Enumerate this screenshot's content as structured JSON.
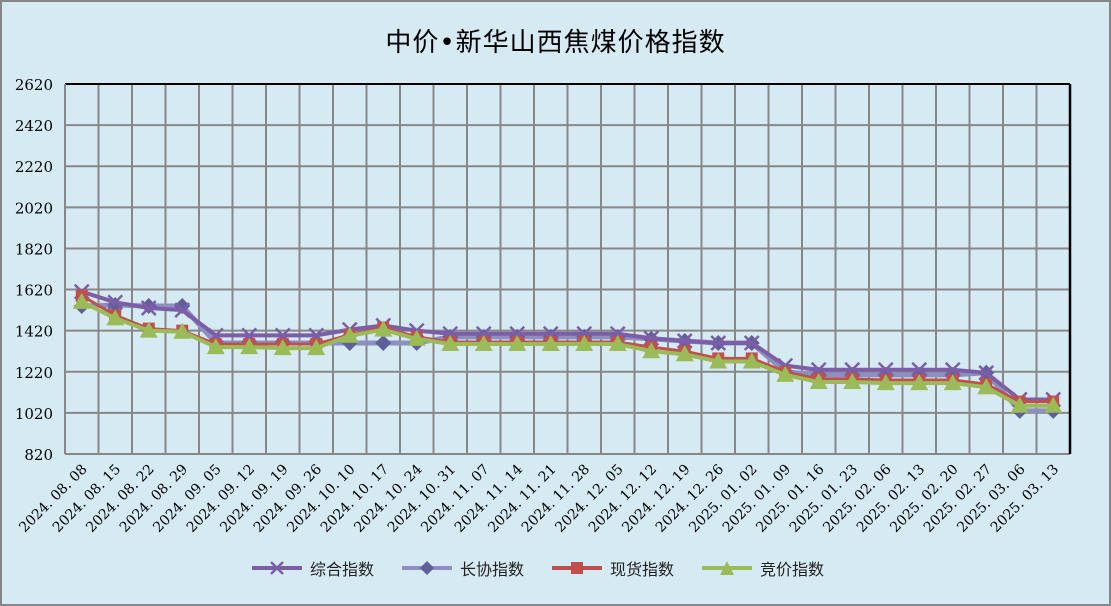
{
  "chart_data": {
    "type": "line",
    "title": "中价•新华山西焦煤价格指数",
    "xlabel": "",
    "ylabel": "",
    "ylim": [
      820,
      2620
    ],
    "yticks": [
      820,
      1020,
      1220,
      1420,
      1620,
      1820,
      2020,
      2220,
      2420,
      2620
    ],
    "grid": true,
    "legend_position": "bottom",
    "categories": [
      "2024. 08. 08",
      "2024. 08. 15",
      "2024. 08. 22",
      "2024. 08. 29",
      "2024. 09. 05",
      "2024. 09. 12",
      "2024. 09. 19",
      "2024. 09. 26",
      "2024. 10. 10",
      "2024. 10. 17",
      "2024. 10. 24",
      "2024. 10. 31",
      "2024. 11. 07",
      "2024. 11. 14",
      "2024. 11. 21",
      "2024. 11. 28",
      "2024. 12. 05",
      "2024. 12. 12",
      "2024. 12. 19",
      "2024. 12. 26",
      "2025. 01. 02",
      "2025. 01. 09",
      "2025. 01. 16",
      "2025. 01. 23",
      "2025. 02. 06",
      "2025. 02. 13",
      "2025. 02. 20",
      "2025. 02. 27",
      "2025. 03. 06",
      "2025. 03. 13"
    ],
    "series": [
      {
        "name": "综合指数",
        "color": "#7b5ea7",
        "marker": "x",
        "values": [
          1610,
          1558,
          1530,
          1520,
          1397,
          1397,
          1397,
          1397,
          1425,
          1445,
          1420,
          1405,
          1405,
          1405,
          1405,
          1405,
          1405,
          1383,
          1370,
          1360,
          1360,
          1250,
          1230,
          1230,
          1230,
          1230,
          1230,
          1215,
          1085,
          1085
        ]
      },
      {
        "name": "长协指数",
        "color": "#8c8fc0",
        "marker": "diamond",
        "values": [
          1540,
          1545,
          1540,
          1540,
          1360,
          1360,
          1360,
          1360,
          1360,
          1360,
          1360,
          1390,
          1390,
          1390,
          1390,
          1390,
          1390,
          1380,
          1370,
          1360,
          1360,
          1220,
          1205,
          1205,
          1205,
          1205,
          1205,
          1215,
          1030,
          1030
        ]
      },
      {
        "name": "现货指数",
        "color": "#c0504d",
        "marker": "square",
        "values": [
          1590,
          1495,
          1430,
          1420,
          1355,
          1355,
          1355,
          1355,
          1400,
          1435,
          1390,
          1365,
          1365,
          1365,
          1365,
          1365,
          1365,
          1340,
          1320,
          1285,
          1285,
          1220,
          1185,
          1185,
          1180,
          1180,
          1180,
          1160,
          1075,
          1075
        ]
      },
      {
        "name": "竞价指数",
        "color": "#9bbb59",
        "marker": "triangle",
        "values": [
          1560,
          1480,
          1420,
          1415,
          1340,
          1340,
          1335,
          1335,
          1395,
          1425,
          1380,
          1355,
          1355,
          1355,
          1355,
          1355,
          1355,
          1320,
          1305,
          1270,
          1270,
          1205,
          1170,
          1170,
          1165,
          1165,
          1165,
          1145,
          1055,
          1055
        ]
      }
    ]
  },
  "legend": [
    {
      "label": "综合指数"
    },
    {
      "label": "长协指数"
    },
    {
      "label": "现货指数"
    },
    {
      "label": "竞价指数"
    }
  ]
}
